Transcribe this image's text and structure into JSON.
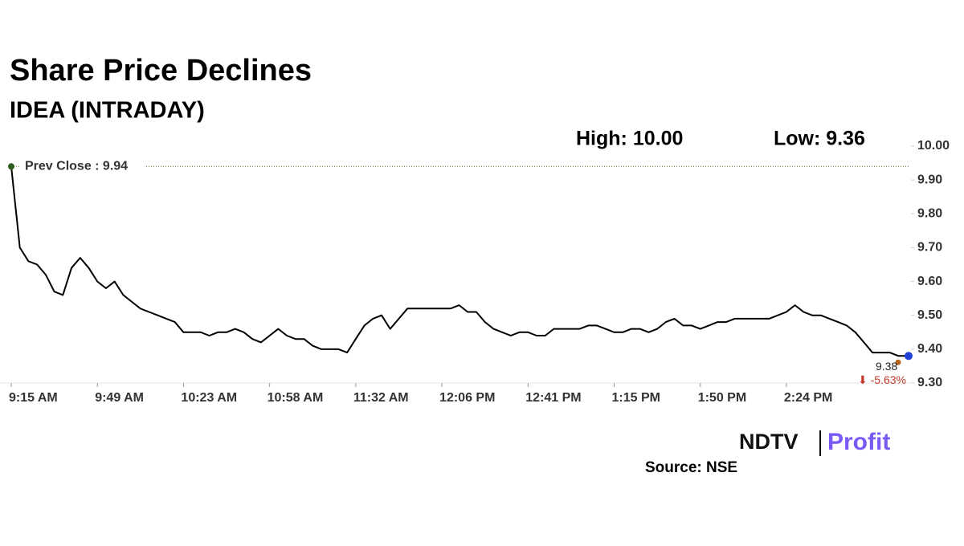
{
  "chart_data": {
    "type": "line",
    "title": "Share Price Declines",
    "subtitle": "IDEA (INTRADAY)",
    "high_label": "High: 10.00",
    "low_label": "Low: 9.36",
    "prev_close": 9.94,
    "prev_close_label": "Prev Close : 9.94",
    "last_label": "9.38",
    "change_label": "⬇ -5.63%",
    "source": "Source: NSE",
    "logo": [
      "NDTV",
      "Profit"
    ],
    "color": "#000000",
    "categories": [
      "9:15 AM",
      null,
      null,
      null,
      null,
      null,
      null,
      null,
      null,
      null,
      "9:49 AM",
      null,
      null,
      null,
      null,
      null,
      null,
      null,
      null,
      null,
      "10:23 AM",
      null,
      null,
      null,
      null,
      null,
      null,
      null,
      null,
      null,
      "10:58 AM",
      null,
      null,
      null,
      null,
      null,
      null,
      null,
      null,
      null,
      "11:32 AM",
      null,
      null,
      null,
      null,
      null,
      null,
      null,
      null,
      null,
      "12:06 PM",
      null,
      null,
      null,
      null,
      null,
      null,
      null,
      null,
      null,
      "12:41 PM",
      null,
      null,
      null,
      null,
      null,
      null,
      null,
      null,
      null,
      "1:15 PM",
      null,
      null,
      null,
      null,
      null,
      null,
      null,
      null,
      null,
      "1:50 PM",
      null,
      null,
      null,
      null,
      null,
      null,
      null,
      null,
      null,
      "2:24 PM",
      null,
      null,
      null,
      null,
      null,
      null,
      null,
      null,
      null,
      null,
      null,
      null,
      null,
      null
    ],
    "values": [
      9.94,
      9.7,
      9.66,
      9.65,
      9.62,
      9.57,
      9.56,
      9.64,
      9.67,
      9.64,
      9.6,
      9.58,
      9.6,
      9.56,
      9.54,
      9.52,
      9.51,
      9.5,
      9.49,
      9.48,
      9.45,
      9.45,
      9.45,
      9.44,
      9.45,
      9.45,
      9.46,
      9.45,
      9.43,
      9.42,
      9.44,
      9.46,
      9.44,
      9.43,
      9.43,
      9.41,
      9.4,
      9.4,
      9.4,
      9.39,
      9.43,
      9.47,
      9.49,
      9.5,
      9.46,
      9.49,
      9.52,
      9.52,
      9.52,
      9.52,
      9.52,
      9.52,
      9.53,
      9.51,
      9.51,
      9.48,
      9.46,
      9.45,
      9.44,
      9.45,
      9.45,
      9.44,
      9.44,
      9.46,
      9.46,
      9.46,
      9.46,
      9.47,
      9.47,
      9.46,
      9.45,
      9.45,
      9.46,
      9.46,
      9.45,
      9.46,
      9.48,
      9.49,
      9.47,
      9.47,
      9.46,
      9.47,
      9.48,
      9.48,
      9.49,
      9.49,
      9.49,
      9.49,
      9.49,
      9.5,
      9.51,
      9.53,
      9.51,
      9.5,
      9.5,
      9.49,
      9.48,
      9.47,
      9.45,
      9.42,
      9.39,
      9.39,
      9.39,
      9.38,
      9.38
    ],
    "ylim": [
      9.3,
      10.0
    ],
    "yticks": [
      {
        "value": 9.3,
        "label": "9.30"
      },
      {
        "value": 9.4,
        "label": "9.40"
      },
      {
        "value": 9.5,
        "label": "9.50"
      },
      {
        "value": 9.6,
        "label": "9.60"
      },
      {
        "value": 9.7,
        "label": "9.70"
      },
      {
        "value": 9.8,
        "label": "9.80"
      },
      {
        "value": 9.9,
        "label": "9.90"
      },
      {
        "value": 10.0,
        "label": "10.00"
      }
    ]
  }
}
